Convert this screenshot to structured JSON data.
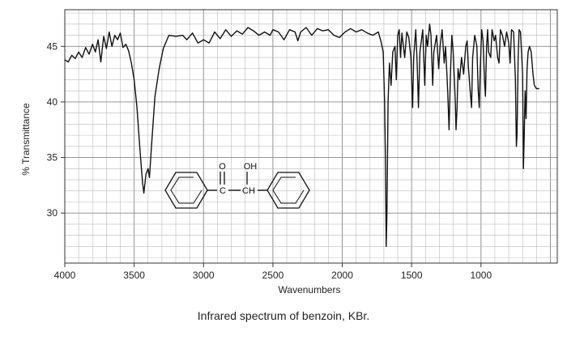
{
  "caption": "Infrared spectrum of benzoin, KBr.",
  "chart_data": {
    "type": "line",
    "xlabel": "Wavenumbers",
    "ylabel": "% Transmittance",
    "xlim": [
      4000,
      450
    ],
    "x_reversed": true,
    "ylim": [
      25.5,
      48.3
    ],
    "x_ticks": [
      4000,
      3500,
      3000,
      2500,
      2000,
      1500,
      1000
    ],
    "y_ticks": [
      30,
      35,
      40,
      45
    ],
    "grid": true,
    "series": [
      {
        "values": [
          [
            4000,
            43.8
          ],
          [
            3975,
            43.6
          ],
          [
            3950,
            44.2
          ],
          [
            3925,
            43.9
          ],
          [
            3900,
            44.5
          ],
          [
            3875,
            44.0
          ],
          [
            3850,
            44.9
          ],
          [
            3825,
            44.3
          ],
          [
            3800,
            45.2
          ],
          [
            3780,
            44.5
          ],
          [
            3760,
            45.6
          ],
          [
            3740,
            43.6
          ],
          [
            3720,
            45.9
          ],
          [
            3700,
            44.8
          ],
          [
            3680,
            46.3
          ],
          [
            3660,
            45.0
          ],
          [
            3640,
            46.0
          ],
          [
            3620,
            45.6
          ],
          [
            3600,
            46.2
          ],
          [
            3580,
            44.9
          ],
          [
            3560,
            45.2
          ],
          [
            3540,
            44.6
          ],
          [
            3520,
            43.5
          ],
          [
            3500,
            42.0
          ],
          [
            3480,
            39.5
          ],
          [
            3460,
            36.0
          ],
          [
            3440,
            32.8
          ],
          [
            3430,
            31.8
          ],
          [
            3415,
            33.5
          ],
          [
            3400,
            34.0
          ],
          [
            3390,
            33.2
          ],
          [
            3375,
            36.0
          ],
          [
            3350,
            40.5
          ],
          [
            3320,
            43.0
          ],
          [
            3290,
            44.8
          ],
          [
            3250,
            46.0
          ],
          [
            3200,
            45.9
          ],
          [
            3150,
            46.0
          ],
          [
            3120,
            45.6
          ],
          [
            3080,
            46.2
          ],
          [
            3040,
            45.3
          ],
          [
            3000,
            45.6
          ],
          [
            2960,
            45.3
          ],
          [
            2920,
            46.3
          ],
          [
            2880,
            45.7
          ],
          [
            2840,
            46.5
          ],
          [
            2800,
            45.9
          ],
          [
            2760,
            46.4
          ],
          [
            2720,
            46.1
          ],
          [
            2680,
            46.7
          ],
          [
            2640,
            46.4
          ],
          [
            2600,
            46.0
          ],
          [
            2560,
            46.3
          ],
          [
            2520,
            46.0
          ],
          [
            2500,
            46.5
          ],
          [
            2460,
            46.3
          ],
          [
            2420,
            45.6
          ],
          [
            2380,
            46.5
          ],
          [
            2340,
            46.3
          ],
          [
            2320,
            45.5
          ],
          [
            2300,
            46.3
          ],
          [
            2260,
            46.7
          ],
          [
            2220,
            46.0
          ],
          [
            2180,
            46.6
          ],
          [
            2140,
            46.4
          ],
          [
            2100,
            46.5
          ],
          [
            2060,
            46.0
          ],
          [
            2020,
            45.8
          ],
          [
            1980,
            46.3
          ],
          [
            1940,
            46.6
          ],
          [
            1900,
            46.3
          ],
          [
            1860,
            46.5
          ],
          [
            1820,
            46.2
          ],
          [
            1780,
            46.0
          ],
          [
            1740,
            46.3
          ],
          [
            1720,
            45.4
          ],
          [
            1705,
            44.5
          ],
          [
            1695,
            40.0
          ],
          [
            1688,
            34.0
          ],
          [
            1683,
            27.0
          ],
          [
            1678,
            30.0
          ],
          [
            1670,
            40.0
          ],
          [
            1660,
            43.5
          ],
          [
            1648,
            41.5
          ],
          [
            1636,
            44.5
          ],
          [
            1620,
            45.0
          ],
          [
            1610,
            42.0
          ],
          [
            1600,
            46.0
          ],
          [
            1590,
            46.5
          ],
          [
            1580,
            44.0
          ],
          [
            1570,
            46.2
          ],
          [
            1550,
            44.0
          ],
          [
            1535,
            46.3
          ],
          [
            1520,
            45.8
          ],
          [
            1505,
            44.0
          ],
          [
            1493,
            39.5
          ],
          [
            1485,
            44.0
          ],
          [
            1470,
            46.5
          ],
          [
            1460,
            43.5
          ],
          [
            1451,
            39.5
          ],
          [
            1440,
            44.5
          ],
          [
            1420,
            46.5
          ],
          [
            1405,
            41.5
          ],
          [
            1395,
            46.0
          ],
          [
            1385,
            45.0
          ],
          [
            1370,
            47.0
          ],
          [
            1360,
            46.0
          ],
          [
            1348,
            41.5
          ],
          [
            1340,
            44.5
          ],
          [
            1320,
            46.0
          ],
          [
            1305,
            43.0
          ],
          [
            1295,
            45.0
          ],
          [
            1280,
            46.5
          ],
          [
            1265,
            43.5
          ],
          [
            1255,
            45.0
          ],
          [
            1240,
            41.0
          ],
          [
            1230,
            37.5
          ],
          [
            1220,
            42.5
          ],
          [
            1210,
            46.0
          ],
          [
            1200,
            44.5
          ],
          [
            1185,
            40.0
          ],
          [
            1180,
            37.5
          ],
          [
            1172,
            39.5
          ],
          [
            1165,
            43.0
          ],
          [
            1155,
            42.0
          ],
          [
            1140,
            44.0
          ],
          [
            1125,
            42.5
          ],
          [
            1110,
            45.0
          ],
          [
            1100,
            45.5
          ],
          [
            1090,
            43.0
          ],
          [
            1075,
            40.5
          ],
          [
            1068,
            39.5
          ],
          [
            1060,
            44.0
          ],
          [
            1045,
            46.0
          ],
          [
            1030,
            45.0
          ],
          [
            1020,
            41.0
          ],
          [
            1012,
            39.5
          ],
          [
            1005,
            43.0
          ],
          [
            995,
            46.5
          ],
          [
            985,
            45.5
          ],
          [
            975,
            42.0
          ],
          [
            968,
            40.5
          ],
          [
            960,
            45.0
          ],
          [
            952,
            46.5
          ],
          [
            945,
            44.5
          ],
          [
            930,
            44.0
          ],
          [
            920,
            46.5
          ],
          [
            905,
            45.5
          ],
          [
            895,
            46.0
          ],
          [
            880,
            44.0
          ],
          [
            870,
            43.5
          ],
          [
            860,
            46.5
          ],
          [
            845,
            46.0
          ],
          [
            830,
            45.0
          ],
          [
            815,
            46.3
          ],
          [
            800,
            45.3
          ],
          [
            790,
            43.5
          ],
          [
            780,
            46.5
          ],
          [
            765,
            46.3
          ],
          [
            752,
            42.0
          ],
          [
            745,
            36.0
          ],
          [
            740,
            37.0
          ],
          [
            732,
            44.0
          ],
          [
            725,
            46.5
          ],
          [
            715,
            46.3
          ],
          [
            700,
            42.5
          ],
          [
            694,
            34.0
          ],
          [
            688,
            37.0
          ],
          [
            682,
            41.0
          ],
          [
            675,
            38.5
          ],
          [
            668,
            43.0
          ],
          [
            660,
            44.5
          ],
          [
            650,
            45.0
          ],
          [
            638,
            44.5
          ],
          [
            625,
            42.5
          ],
          [
            615,
            41.5
          ],
          [
            600,
            41.2
          ],
          [
            580,
            41.2
          ]
        ]
      }
    ],
    "annotation": {
      "type": "structure",
      "labels": [
        "O",
        "OH",
        "C",
        "CH"
      ]
    }
  }
}
